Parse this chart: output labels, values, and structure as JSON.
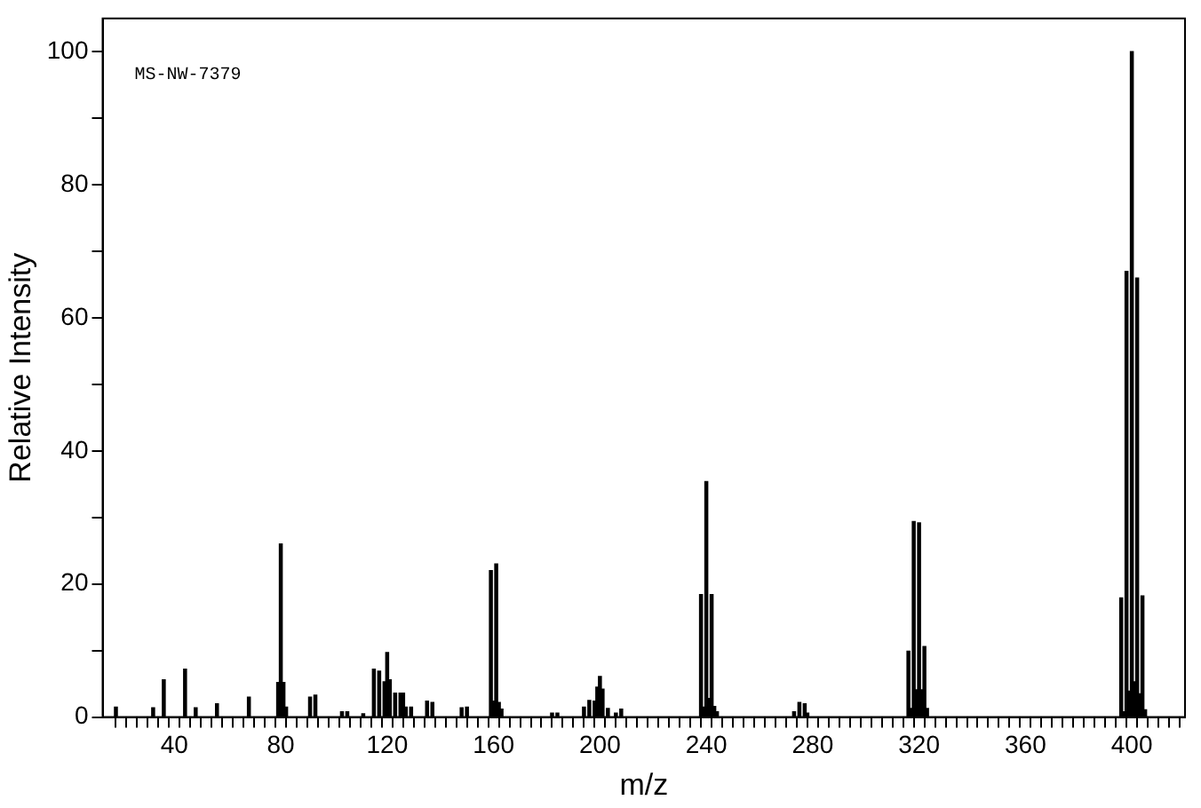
{
  "chart_data": {
    "type": "bar",
    "xlabel": "m/z",
    "ylabel": "Relative Intensity",
    "color": "#000000",
    "annotations": [
      "MS-NW-7379"
    ],
    "x": [
      18,
      32,
      36,
      44,
      48,
      56,
      68,
      79,
      80,
      81,
      82,
      91,
      93,
      103,
      105,
      111,
      115,
      117,
      119,
      120,
      121,
      123,
      125,
      126,
      127,
      129,
      135,
      137,
      148,
      150,
      159,
      160,
      161,
      162,
      163,
      182,
      184,
      194,
      196,
      198,
      199,
      200,
      201,
      203,
      206,
      208,
      238,
      239,
      240,
      241,
      242,
      243,
      244,
      273,
      275,
      277,
      278,
      316,
      317,
      318,
      319,
      320,
      321,
      322,
      323,
      396,
      397,
      398,
      399,
      400,
      401,
      402,
      403,
      404,
      405
    ],
    "values": [
      1.5,
      1.4,
      5.6,
      7.2,
      1.4,
      2.0,
      3.0,
      5.2,
      26,
      5.2,
      1.5,
      3.0,
      3.3,
      0.8,
      0.8,
      0.5,
      7.2,
      6.9,
      5.3,
      9.7,
      5.6,
      3.6,
      3.6,
      3.6,
      1.5,
      1.5,
      2.4,
      2.2,
      1.4,
      1.5,
      22,
      2.4,
      23,
      2.2,
      1.2,
      0.6,
      0.6,
      1.5,
      2.5,
      2.4,
      4.5,
      6.1,
      4.2,
      1.3,
      0.6,
      1.2,
      18.4,
      1.5,
      35.4,
      2.8,
      18.4,
      1.6,
      0.8,
      0.8,
      2.2,
      2.0,
      0.6,
      9.9,
      1.3,
      29.4,
      4.1,
      29.2,
      4.1,
      10.6,
      1.3,
      17.9,
      0.8,
      67,
      3.9,
      100,
      5.3,
      66,
      3.5,
      18.2,
      1.1
    ],
    "xlim": [
      13,
      420
    ],
    "ylim": [
      0,
      105
    ],
    "xticks": [
      {
        "value": 20,
        "label": null
      },
      {
        "value": 24,
        "label": null
      },
      {
        "value": 28,
        "label": null
      },
      {
        "value": 32,
        "label": null
      },
      {
        "value": 36,
        "label": null
      },
      40,
      {
        "value": 44,
        "label": null
      },
      {
        "value": 48,
        "label": null
      },
      {
        "value": 52,
        "label": null
      },
      {
        "value": 56,
        "label": null
      },
      {
        "value": 60,
        "label": null
      },
      {
        "value": 64,
        "label": null
      },
      {
        "value": 68,
        "label": null
      },
      {
        "value": 72,
        "label": null
      },
      {
        "value": 76,
        "label": null
      },
      80,
      {
        "value": 84,
        "label": null
      },
      {
        "value": 88,
        "label": null
      },
      {
        "value": 92,
        "label": null
      },
      {
        "value": 96,
        "label": null
      },
      {
        "value": 100,
        "label": null
      },
      {
        "value": 104,
        "label": null
      },
      {
        "value": 108,
        "label": null
      },
      {
        "value": 112,
        "label": null
      },
      {
        "value": 116,
        "label": null
      },
      120,
      {
        "value": 124,
        "label": null
      },
      {
        "value": 128,
        "label": null
      },
      {
        "value": 132,
        "label": null
      },
      {
        "value": 136,
        "label": null
      },
      {
        "value": 140,
        "label": null
      },
      {
        "value": 144,
        "label": null
      },
      {
        "value": 148,
        "label": null
      },
      {
        "value": 152,
        "label": null
      },
      {
        "value": 156,
        "label": null
      },
      160,
      {
        "value": 164,
        "label": null
      },
      {
        "value": 168,
        "label": null
      },
      {
        "value": 172,
        "label": null
      },
      {
        "value": 176,
        "label": null
      },
      {
        "value": 180,
        "label": null
      },
      {
        "value": 184,
        "label": null
      },
      {
        "value": 188,
        "label": null
      },
      {
        "value": 192,
        "label": null
      },
      {
        "value": 196,
        "label": null
      },
      200,
      {
        "value": 204,
        "label": null
      },
      {
        "value": 208,
        "label": null
      },
      {
        "value": 212,
        "label": null
      },
      {
        "value": 216,
        "label": null
      },
      {
        "value": 220,
        "label": null
      },
      {
        "value": 224,
        "label": null
      },
      {
        "value": 228,
        "label": null
      },
      {
        "value": 232,
        "label": null
      },
      {
        "value": 236,
        "label": null
      },
      240,
      {
        "value": 244,
        "label": null
      },
      {
        "value": 248,
        "label": null
      },
      {
        "value": 252,
        "label": null
      },
      {
        "value": 256,
        "label": null
      },
      {
        "value": 260,
        "label": null
      },
      {
        "value": 264,
        "label": null
      },
      {
        "value": 268,
        "label": null
      },
      {
        "value": 272,
        "label": null
      },
      {
        "value": 276,
        "label": null
      },
      280,
      {
        "value": 284,
        "label": null
      },
      {
        "value": 288,
        "label": null
      },
      {
        "value": 292,
        "label": null
      },
      {
        "value": 296,
        "label": null
      },
      {
        "value": 300,
        "label": null
      },
      {
        "value": 304,
        "label": null
      },
      {
        "value": 308,
        "label": null
      },
      {
        "value": 312,
        "label": null
      },
      {
        "value": 316,
        "label": null
      },
      320,
      {
        "value": 324,
        "label": null
      },
      {
        "value": 328,
        "label": null
      },
      {
        "value": 332,
        "label": null
      },
      {
        "value": 336,
        "label": null
      },
      {
        "value": 340,
        "label": null
      },
      {
        "value": 344,
        "label": null
      },
      {
        "value": 348,
        "label": null
      },
      {
        "value": 352,
        "label": null
      },
      {
        "value": 356,
        "label": null
      },
      360,
      {
        "value": 364,
        "label": null
      },
      {
        "value": 368,
        "label": null
      },
      {
        "value": 372,
        "label": null
      },
      {
        "value": 376,
        "label": null
      },
      {
        "value": 380,
        "label": null
      },
      {
        "value": 384,
        "label": null
      },
      {
        "value": 388,
        "label": null
      },
      {
        "value": 392,
        "label": null
      },
      {
        "value": 396,
        "label": null
      },
      400,
      {
        "value": 404,
        "label": null
      },
      {
        "value": 408,
        "label": null
      },
      {
        "value": 412,
        "label": null
      },
      {
        "value": 416,
        "label": null
      }
    ],
    "yticks": [
      0,
      {
        "value": 10,
        "label": null
      },
      20,
      {
        "value": 30,
        "label": null
      },
      40,
      {
        "value": 50,
        "label": null
      },
      60,
      {
        "value": 70,
        "label": null
      },
      80,
      {
        "value": 90,
        "label": null
      },
      100
    ]
  }
}
